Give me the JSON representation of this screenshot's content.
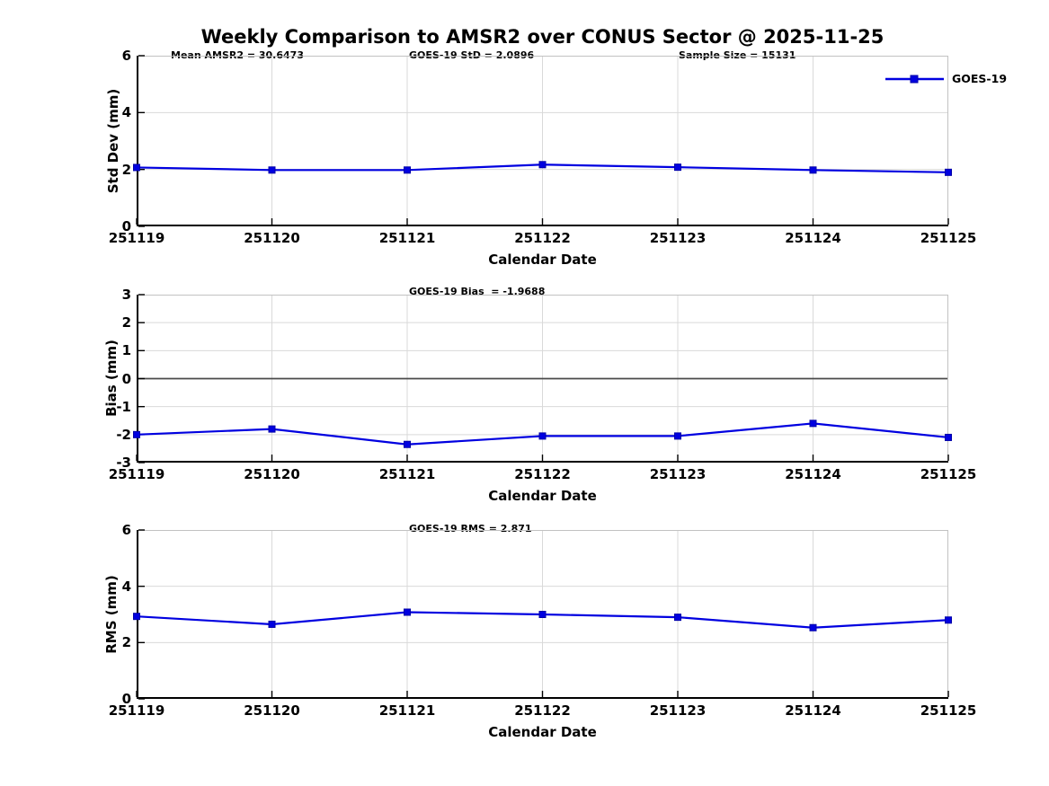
{
  "title": "Weekly Comparison to AMSR2 over CONUS Sector @ 2025-11-25",
  "legend": {
    "label": "GOES-19",
    "position": "top-right"
  },
  "colors": {
    "line": "#0000E0",
    "marker_edge": "#0000A8",
    "grid": "#d9d9d9",
    "zero_line": "#4a4a4a",
    "axis": "#000000",
    "box": "#c2c2c2",
    "text": "#000000",
    "background": "#ffffff"
  },
  "chart_data": [
    {
      "id": "stddev",
      "type": "line",
      "annotations": [
        {
          "text": "Mean AMSR2 = 30.6473"
        },
        {
          "text": "GOES-19 StD = 2.0896"
        },
        {
          "text": "Sample Size = 15131"
        }
      ],
      "categories": [
        "251119",
        "251120",
        "251121",
        "251122",
        "251123",
        "251124",
        "251125"
      ],
      "series": [
        {
          "name": "GOES-19",
          "values": [
            2.07,
            1.98,
            1.98,
            2.17,
            2.08,
            1.98,
            1.9
          ]
        }
      ],
      "xlabel": "Calendar Date",
      "ylabel": "Std Dev (mm)",
      "ylim": [
        0,
        6
      ],
      "yticks": [
        0,
        2,
        4,
        6
      ],
      "grid": true,
      "zero_line": false,
      "legend_position": "top-right-outside"
    },
    {
      "id": "bias",
      "type": "line",
      "annotations": [
        {
          "text": "GOES-19 Bias  = -1.9688"
        }
      ],
      "categories": [
        "251119",
        "251120",
        "251121",
        "251122",
        "251123",
        "251124",
        "251125"
      ],
      "series": [
        {
          "name": "GOES-19",
          "values": [
            -2.0,
            -1.8,
            -2.35,
            -2.05,
            -2.05,
            -1.6,
            -2.1
          ]
        }
      ],
      "xlabel": "Calendar Date",
      "ylabel": "Bias (mm)",
      "ylim": [
        -3,
        3
      ],
      "yticks": [
        3,
        2,
        1,
        0,
        -1,
        -2,
        -3
      ],
      "grid": true,
      "zero_line": true
    },
    {
      "id": "rms",
      "type": "line",
      "annotations": [
        {
          "text": "GOES-19 RMS = 2.871"
        }
      ],
      "categories": [
        "251119",
        "251120",
        "251121",
        "251122",
        "251123",
        "251124",
        "251125"
      ],
      "series": [
        {
          "name": "GOES-19",
          "values": [
            2.93,
            2.65,
            3.08,
            3.0,
            2.9,
            2.53,
            2.8
          ]
        }
      ],
      "xlabel": "Calendar Date",
      "ylabel": "RMS (mm)",
      "ylim": [
        0,
        6
      ],
      "yticks": [
        0,
        2,
        4,
        6
      ],
      "grid": true,
      "zero_line": false
    }
  ]
}
